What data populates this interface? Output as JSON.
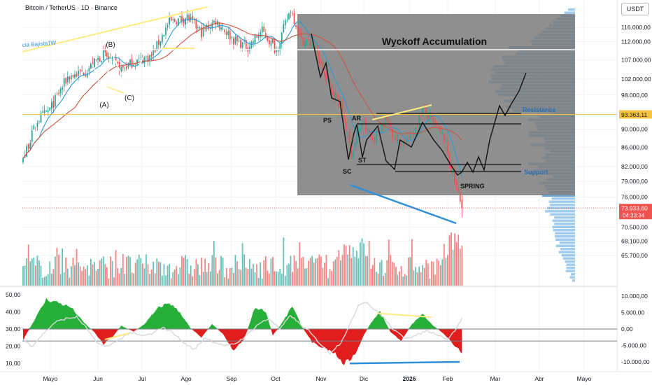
{
  "header": {
    "symbol": "Bitcoin / TetherUS · 1D · Binance",
    "currency": "USDT"
  },
  "colors": {
    "up": "#26a69a",
    "down": "#ef5350",
    "ma_fast": "#2a9bd6",
    "ma_slow": "#c8553d",
    "wyckoff_box": "#808080",
    "yellow_line": "#ffeb80",
    "blue_line": "#2f8fd9",
    "osc_green": "#26b03a",
    "osc_red": "#e01e1e"
  },
  "chart_data": [
    {
      "type": "candlestick",
      "title": "",
      "price_axis_labels": [
        "116.000,00",
        "112.000,00",
        "107.000,00",
        "102.000,00",
        "98.000,00",
        "93.363,11",
        "90.000,00",
        "86.000,00",
        "82.000,00",
        "79.000,00",
        "76.000,00",
        "73.933,60",
        "70.500,00",
        "68.100,00",
        "65.700,00"
      ],
      "price_ticks": [
        116000,
        112000,
        107000,
        102000,
        98000,
        90000,
        86000,
        82000,
        79000,
        76000,
        70500,
        68100,
        65700
      ],
      "y_range": [
        62000,
        122500
      ],
      "log_scale": true,
      "last_price": 73933.6,
      "countdown": "04:33:34",
      "horizontal_level": 93363.11,
      "x_tick_labels": [
        "Mayo",
        "Jun",
        "Jul",
        "Ago",
        "Sep",
        "Oct",
        "Nov",
        "Dic",
        "2026",
        "Feb",
        "Mar",
        "Abr",
        "Mayo"
      ],
      "annotations": {
        "box_title": "Wyckoff Accumulation",
        "trendline_label": "cia Bajista1W",
        "events": [
          "PS",
          "AR",
          "SC",
          "ST",
          "SPRING"
        ],
        "levels": [
          "Resistance",
          "Support"
        ],
        "waves": [
          "(A)",
          "(B)",
          "(C)"
        ]
      },
      "anchors": [
        {
          "i": 0,
          "p": 83500
        },
        {
          "i": 8,
          "p": 92000
        },
        {
          "i": 15,
          "p": 94500
        },
        {
          "i": 25,
          "p": 102500
        },
        {
          "i": 35,
          "p": 104000
        },
        {
          "i": 45,
          "p": 108500
        },
        {
          "i": 55,
          "p": 104500
        },
        {
          "i": 62,
          "p": 106500
        },
        {
          "i": 72,
          "p": 108000
        },
        {
          "i": 82,
          "p": 117500
        },
        {
          "i": 92,
          "p": 119000
        },
        {
          "i": 100,
          "p": 114500
        },
        {
          "i": 108,
          "p": 118000
        },
        {
          "i": 118,
          "p": 112500
        },
        {
          "i": 126,
          "p": 110500
        },
        {
          "i": 134,
          "p": 115000
        },
        {
          "i": 142,
          "p": 109500
        },
        {
          "i": 150,
          "p": 121500
        },
        {
          "i": 156,
          "p": 112500
        },
        {
          "i": 163,
          "p": 111000
        },
        {
          "i": 170,
          "p": 101500
        },
        {
          "i": 178,
          "p": 95500
        },
        {
          "i": 184,
          "p": 84800
        },
        {
          "i": 190,
          "p": 91500
        },
        {
          "i": 196,
          "p": 87500
        },
        {
          "i": 203,
          "p": 92500
        },
        {
          "i": 210,
          "p": 87000
        },
        {
          "i": 217,
          "p": 87800
        },
        {
          "i": 224,
          "p": 94500
        },
        {
          "i": 230,
          "p": 91500
        },
        {
          "i": 236,
          "p": 88000
        },
        {
          "i": 240,
          "p": 81500
        },
        {
          "i": 246,
          "p": 73933
        }
      ]
    },
    {
      "type": "oscillator",
      "left_axis_labels": [
        "50,00",
        "40,00",
        "30,00",
        "20,00",
        "10,00"
      ],
      "left_ticks": [
        50,
        40,
        30,
        20,
        10
      ],
      "left_range": [
        8,
        52
      ],
      "right_axis_labels": [
        "10.000,00",
        "5.000,00",
        "0,00",
        "-5.000,00",
        "-10.000,00"
      ],
      "right_ticks": [
        10000,
        5000,
        0,
        -5000,
        -10000
      ],
      "right_range": [
        -11500,
        11500
      ],
      "histogram_anchors": [
        {
          "i": 0,
          "v": -3500
        },
        {
          "i": 5,
          "v": 1500
        },
        {
          "i": 13,
          "v": 9000
        },
        {
          "i": 20,
          "v": 8000
        },
        {
          "i": 27,
          "v": 6500
        },
        {
          "i": 34,
          "v": 2000
        },
        {
          "i": 40,
          "v": -1000
        },
        {
          "i": 45,
          "v": -4500
        },
        {
          "i": 50,
          "v": -2500
        },
        {
          "i": 55,
          "v": 1000
        },
        {
          "i": 62,
          "v": -800
        },
        {
          "i": 68,
          "v": 1500
        },
        {
          "i": 76,
          "v": 6500
        },
        {
          "i": 82,
          "v": 8000
        },
        {
          "i": 88,
          "v": 5000
        },
        {
          "i": 94,
          "v": 200
        },
        {
          "i": 100,
          "v": -2500
        },
        {
          "i": 106,
          "v": 1500
        },
        {
          "i": 112,
          "v": -1500
        },
        {
          "i": 118,
          "v": -6500
        },
        {
          "i": 124,
          "v": -3000
        },
        {
          "i": 130,
          "v": 6500
        },
        {
          "i": 136,
          "v": 5500
        },
        {
          "i": 140,
          "v": -2000
        },
        {
          "i": 146,
          "v": 2500
        },
        {
          "i": 151,
          "v": 7000
        },
        {
          "i": 156,
          "v": 1000
        },
        {
          "i": 162,
          "v": -4000
        },
        {
          "i": 168,
          "v": -5500
        },
        {
          "i": 174,
          "v": -7000
        },
        {
          "i": 180,
          "v": -10500
        },
        {
          "i": 186,
          "v": -8000
        },
        {
          "i": 190,
          "v": -3000
        },
        {
          "i": 194,
          "v": 1000
        },
        {
          "i": 200,
          "v": 5500
        },
        {
          "i": 206,
          "v": -1000
        },
        {
          "i": 212,
          "v": -3500
        },
        {
          "i": 218,
          "v": 1500
        },
        {
          "i": 224,
          "v": 4500
        },
        {
          "i": 230,
          "v": 1000
        },
        {
          "i": 236,
          "v": -1500
        },
        {
          "i": 242,
          "v": -5000
        },
        {
          "i": 246,
          "v": -7500
        }
      ],
      "line_anchors": [
        {
          "i": 0,
          "v": 24
        },
        {
          "i": 5,
          "v": 20
        },
        {
          "i": 12,
          "v": 28
        },
        {
          "i": 18,
          "v": 34
        },
        {
          "i": 24,
          "v": 36
        },
        {
          "i": 30,
          "v": 37
        },
        {
          "i": 36,
          "v": 30
        },
        {
          "i": 42,
          "v": 21
        },
        {
          "i": 48,
          "v": 20
        },
        {
          "i": 54,
          "v": 24
        },
        {
          "i": 60,
          "v": 28
        },
        {
          "i": 66,
          "v": 26
        },
        {
          "i": 72,
          "v": 27
        },
        {
          "i": 78,
          "v": 31
        },
        {
          "i": 84,
          "v": 28
        },
        {
          "i": 90,
          "v": 22
        },
        {
          "i": 96,
          "v": 18
        },
        {
          "i": 102,
          "v": 25
        },
        {
          "i": 108,
          "v": 22
        },
        {
          "i": 114,
          "v": 20
        },
        {
          "i": 120,
          "v": 22
        },
        {
          "i": 126,
          "v": 27
        },
        {
          "i": 132,
          "v": 33
        },
        {
          "i": 138,
          "v": 36
        },
        {
          "i": 144,
          "v": 30
        },
        {
          "i": 150,
          "v": 38
        },
        {
          "i": 156,
          "v": 32
        },
        {
          "i": 160,
          "v": 29
        },
        {
          "i": 166,
          "v": 22
        },
        {
          "i": 172,
          "v": 16
        },
        {
          "i": 178,
          "v": 22
        },
        {
          "i": 183,
          "v": 32
        },
        {
          "i": 188,
          "v": 44
        },
        {
          "i": 192,
          "v": 46
        },
        {
          "i": 196,
          "v": 42
        },
        {
          "i": 202,
          "v": 37
        },
        {
          "i": 208,
          "v": 29
        },
        {
          "i": 214,
          "v": 25
        },
        {
          "i": 220,
          "v": 26
        },
        {
          "i": 226,
          "v": 29
        },
        {
          "i": 232,
          "v": 27
        },
        {
          "i": 238,
          "v": 24
        },
        {
          "i": 242,
          "v": 29
        },
        {
          "i": 246,
          "v": 36
        }
      ],
      "reference_levels": [
        30,
        23
      ]
    }
  ]
}
